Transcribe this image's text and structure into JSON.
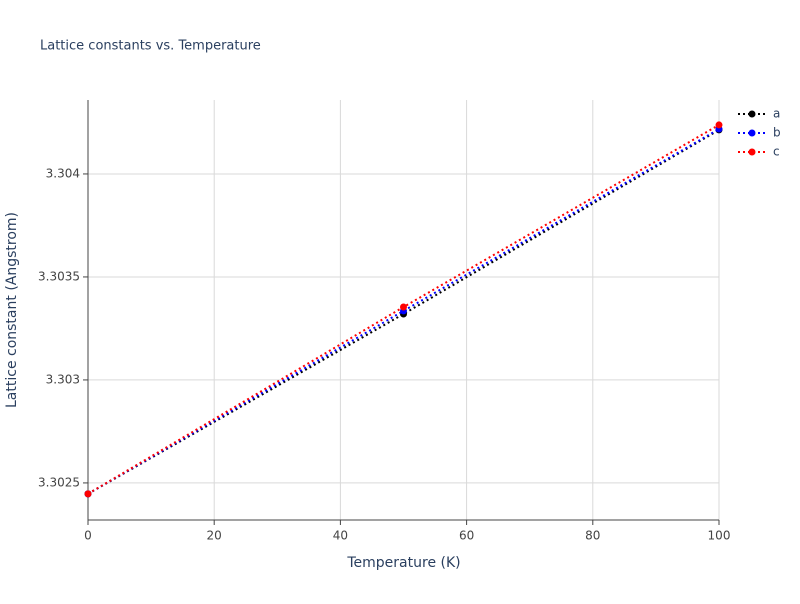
{
  "chart_data": {
    "type": "line",
    "title": "Lattice constants vs. Temperature",
    "x_label": "Temperature (K)",
    "y_label": "Lattice constant (Angstrom)",
    "x": [
      0,
      50,
      100
    ],
    "series": [
      {
        "name": "a",
        "color": "#000000",
        "values": [
          3.302447,
          3.30332,
          3.304214
        ]
      },
      {
        "name": "b",
        "color": "#0000ff",
        "values": [
          3.302447,
          3.303335,
          3.304218
        ]
      },
      {
        "name": "c",
        "color": "#ff0000",
        "values": [
          3.302447,
          3.303354,
          3.304238
        ]
      }
    ],
    "xlim": [
      0,
      100
    ],
    "xticks": [
      0,
      20,
      40,
      60,
      80,
      100
    ],
    "ylim": [
      3.30232,
      3.304359
    ],
    "yticks": [
      3.3025,
      3.303,
      3.3035,
      3.304
    ],
    "grid": true,
    "legend": "right"
  }
}
